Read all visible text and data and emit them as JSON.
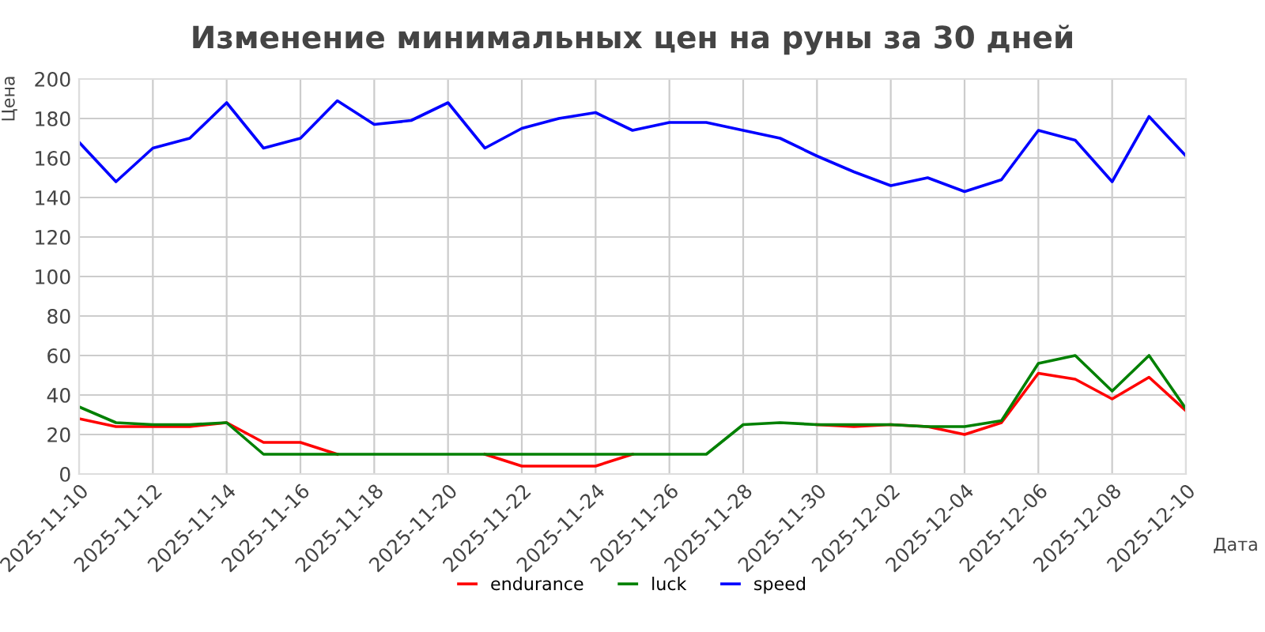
{
  "chart_data": {
    "type": "line",
    "title": "Изменение минимальных цен на руны за 30 дней",
    "xlabel": "Дата",
    "ylabel": "Цена",
    "x": [
      "2025-11-10",
      "2025-11-11",
      "2025-11-12",
      "2025-11-13",
      "2025-11-14",
      "2025-11-15",
      "2025-11-16",
      "2025-11-17",
      "2025-11-18",
      "2025-11-19",
      "2025-11-20",
      "2025-11-21",
      "2025-11-22",
      "2025-11-23",
      "2025-11-24",
      "2025-11-25",
      "2025-11-26",
      "2025-11-27",
      "2025-11-28",
      "2025-11-29",
      "2025-11-30",
      "2025-12-01",
      "2025-12-02",
      "2025-12-03",
      "2025-12-04",
      "2025-12-05",
      "2025-12-06",
      "2025-12-07",
      "2025-12-08",
      "2025-12-09",
      "2025-12-10"
    ],
    "series": [
      {
        "name": "endurance",
        "color": "#ff0000",
        "values": [
          28,
          24,
          24,
          24,
          26,
          16,
          16,
          10,
          null,
          null,
          null,
          10,
          4,
          4,
          4,
          10,
          null,
          null,
          null,
          null,
          25,
          24,
          25,
          24,
          20,
          26,
          51,
          48,
          38,
          49,
          32
        ]
      },
      {
        "name": "luck",
        "color": "#008000",
        "values": [
          34,
          26,
          25,
          25,
          26,
          10,
          10,
          10,
          10,
          10,
          10,
          10,
          10,
          10,
          10,
          10,
          10,
          10,
          25,
          26,
          25,
          25,
          25,
          24,
          24,
          27,
          56,
          60,
          42,
          60,
          33
        ]
      },
      {
        "name": "speed",
        "color": "#0000ff",
        "values": [
          168,
          148,
          165,
          170,
          188,
          165,
          170,
          189,
          177,
          179,
          188,
          165,
          175,
          180,
          183,
          174,
          178,
          178,
          174,
          170,
          161,
          153,
          146,
          150,
          143,
          149,
          174,
          169,
          148,
          181,
          161
        ]
      }
    ],
    "xlim": [
      "2025-11-10",
      "2025-12-10"
    ],
    "xticks": [
      "2025-11-10",
      "2025-11-12",
      "2025-11-14",
      "2025-11-16",
      "2025-11-18",
      "2025-11-20",
      "2025-11-22",
      "2025-11-24",
      "2025-11-26",
      "2025-11-28",
      "2025-11-30",
      "2025-12-02",
      "2025-12-04",
      "2025-12-06",
      "2025-12-08",
      "2025-12-10"
    ],
    "ylim": [
      0,
      200
    ],
    "yticks": [
      0,
      20,
      40,
      60,
      80,
      100,
      120,
      140,
      160,
      180,
      200
    ],
    "grid": true,
    "legend": "bottom",
    "marker": "none",
    "line_style": "solid"
  }
}
